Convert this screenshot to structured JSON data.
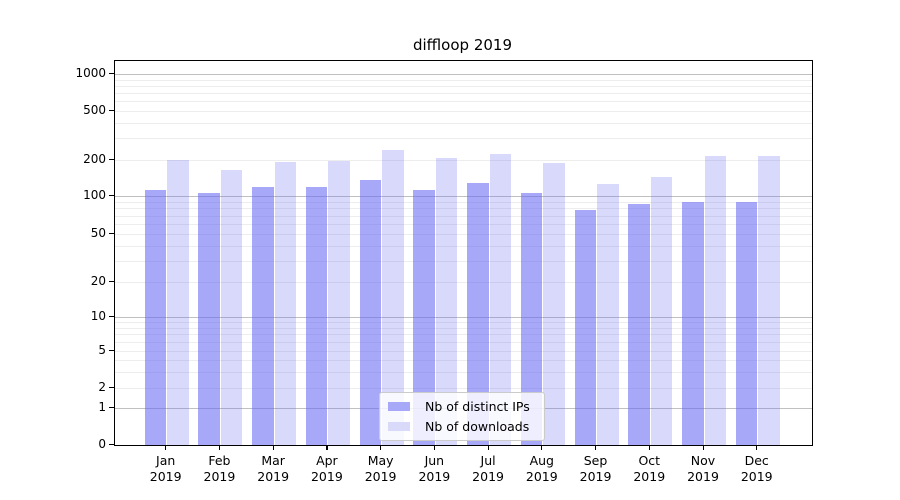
{
  "title": "diffloop 2019",
  "legend": {
    "items": [
      {
        "label": "Nb of distinct IPs",
        "color": "#a8a8f8"
      },
      {
        "label": "Nb of downloads",
        "color": "#d9d9fa"
      }
    ]
  },
  "chart_data": {
    "type": "bar",
    "title": "diffloop 2019",
    "categories": [
      "Jan 2019",
      "Feb 2019",
      "Mar 2019",
      "Apr 2019",
      "May 2019",
      "Jun 2019",
      "Jul 2019",
      "Aug 2019",
      "Sep 2019",
      "Oct 2019",
      "Nov 2019",
      "Dec 2019"
    ],
    "series": [
      {
        "name": "Nb of distinct IPs",
        "values": [
          112,
          106,
          120,
          118,
          135,
          113,
          128,
          105,
          77,
          87,
          90,
          89
        ],
        "bar_color_rgba": "rgba(102,102,245,0.57)",
        "legend_color": "#a8a8f8"
      },
      {
        "name": "Nb of downloads",
        "values": [
          200,
          166,
          194,
          196,
          240,
          206,
          224,
          188,
          125,
          143,
          214,
          215
        ],
        "bar_color_rgba": "rgba(102,102,245,0.25)",
        "legend_color": "#d9d9fa"
      }
    ],
    "xlabel": "",
    "ylabel": "",
    "yscale": "symlog",
    "yticks": [
      0,
      1,
      2,
      5,
      10,
      20,
      50,
      100,
      200,
      500,
      1000
    ],
    "ylim": [
      0,
      1280
    ],
    "grid": true,
    "legend_position": "lower center",
    "grid_major_color": "#c0c0c0",
    "grid_minor_color": "#ededed"
  }
}
